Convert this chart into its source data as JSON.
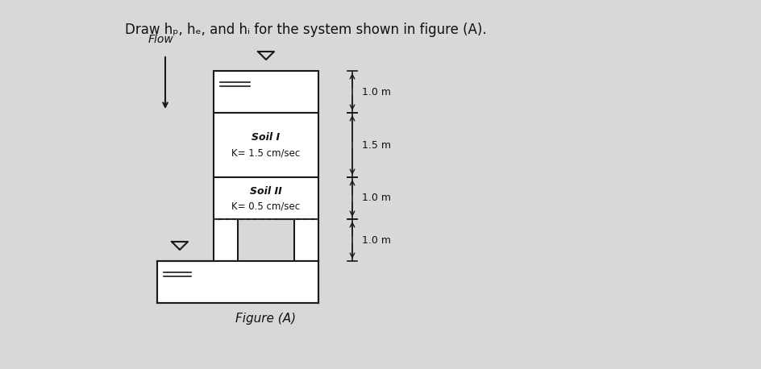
{
  "title": "Draw hₚ, hₑ, and hᵢ for the system shown in figure (A).",
  "title_fontsize": 12,
  "fig_caption": "Figure (A)",
  "background_color": "#d8d8d8",
  "soil1_label": "Soil I",
  "soil1_k": "K= 1.5 cm/sec",
  "soil2_label": "Soil II",
  "soil2_k": "K= 0.5 cm/sec",
  "flow_label": "Flow",
  "dim1": "1.0 m",
  "dim2": "1.5 m",
  "dim3": "1.0 m",
  "dim4": "1.0 m",
  "line_color": "#1a1a1a",
  "dashed_color": "#333333",
  "text_color": "#111111",
  "white": "#ffffff"
}
